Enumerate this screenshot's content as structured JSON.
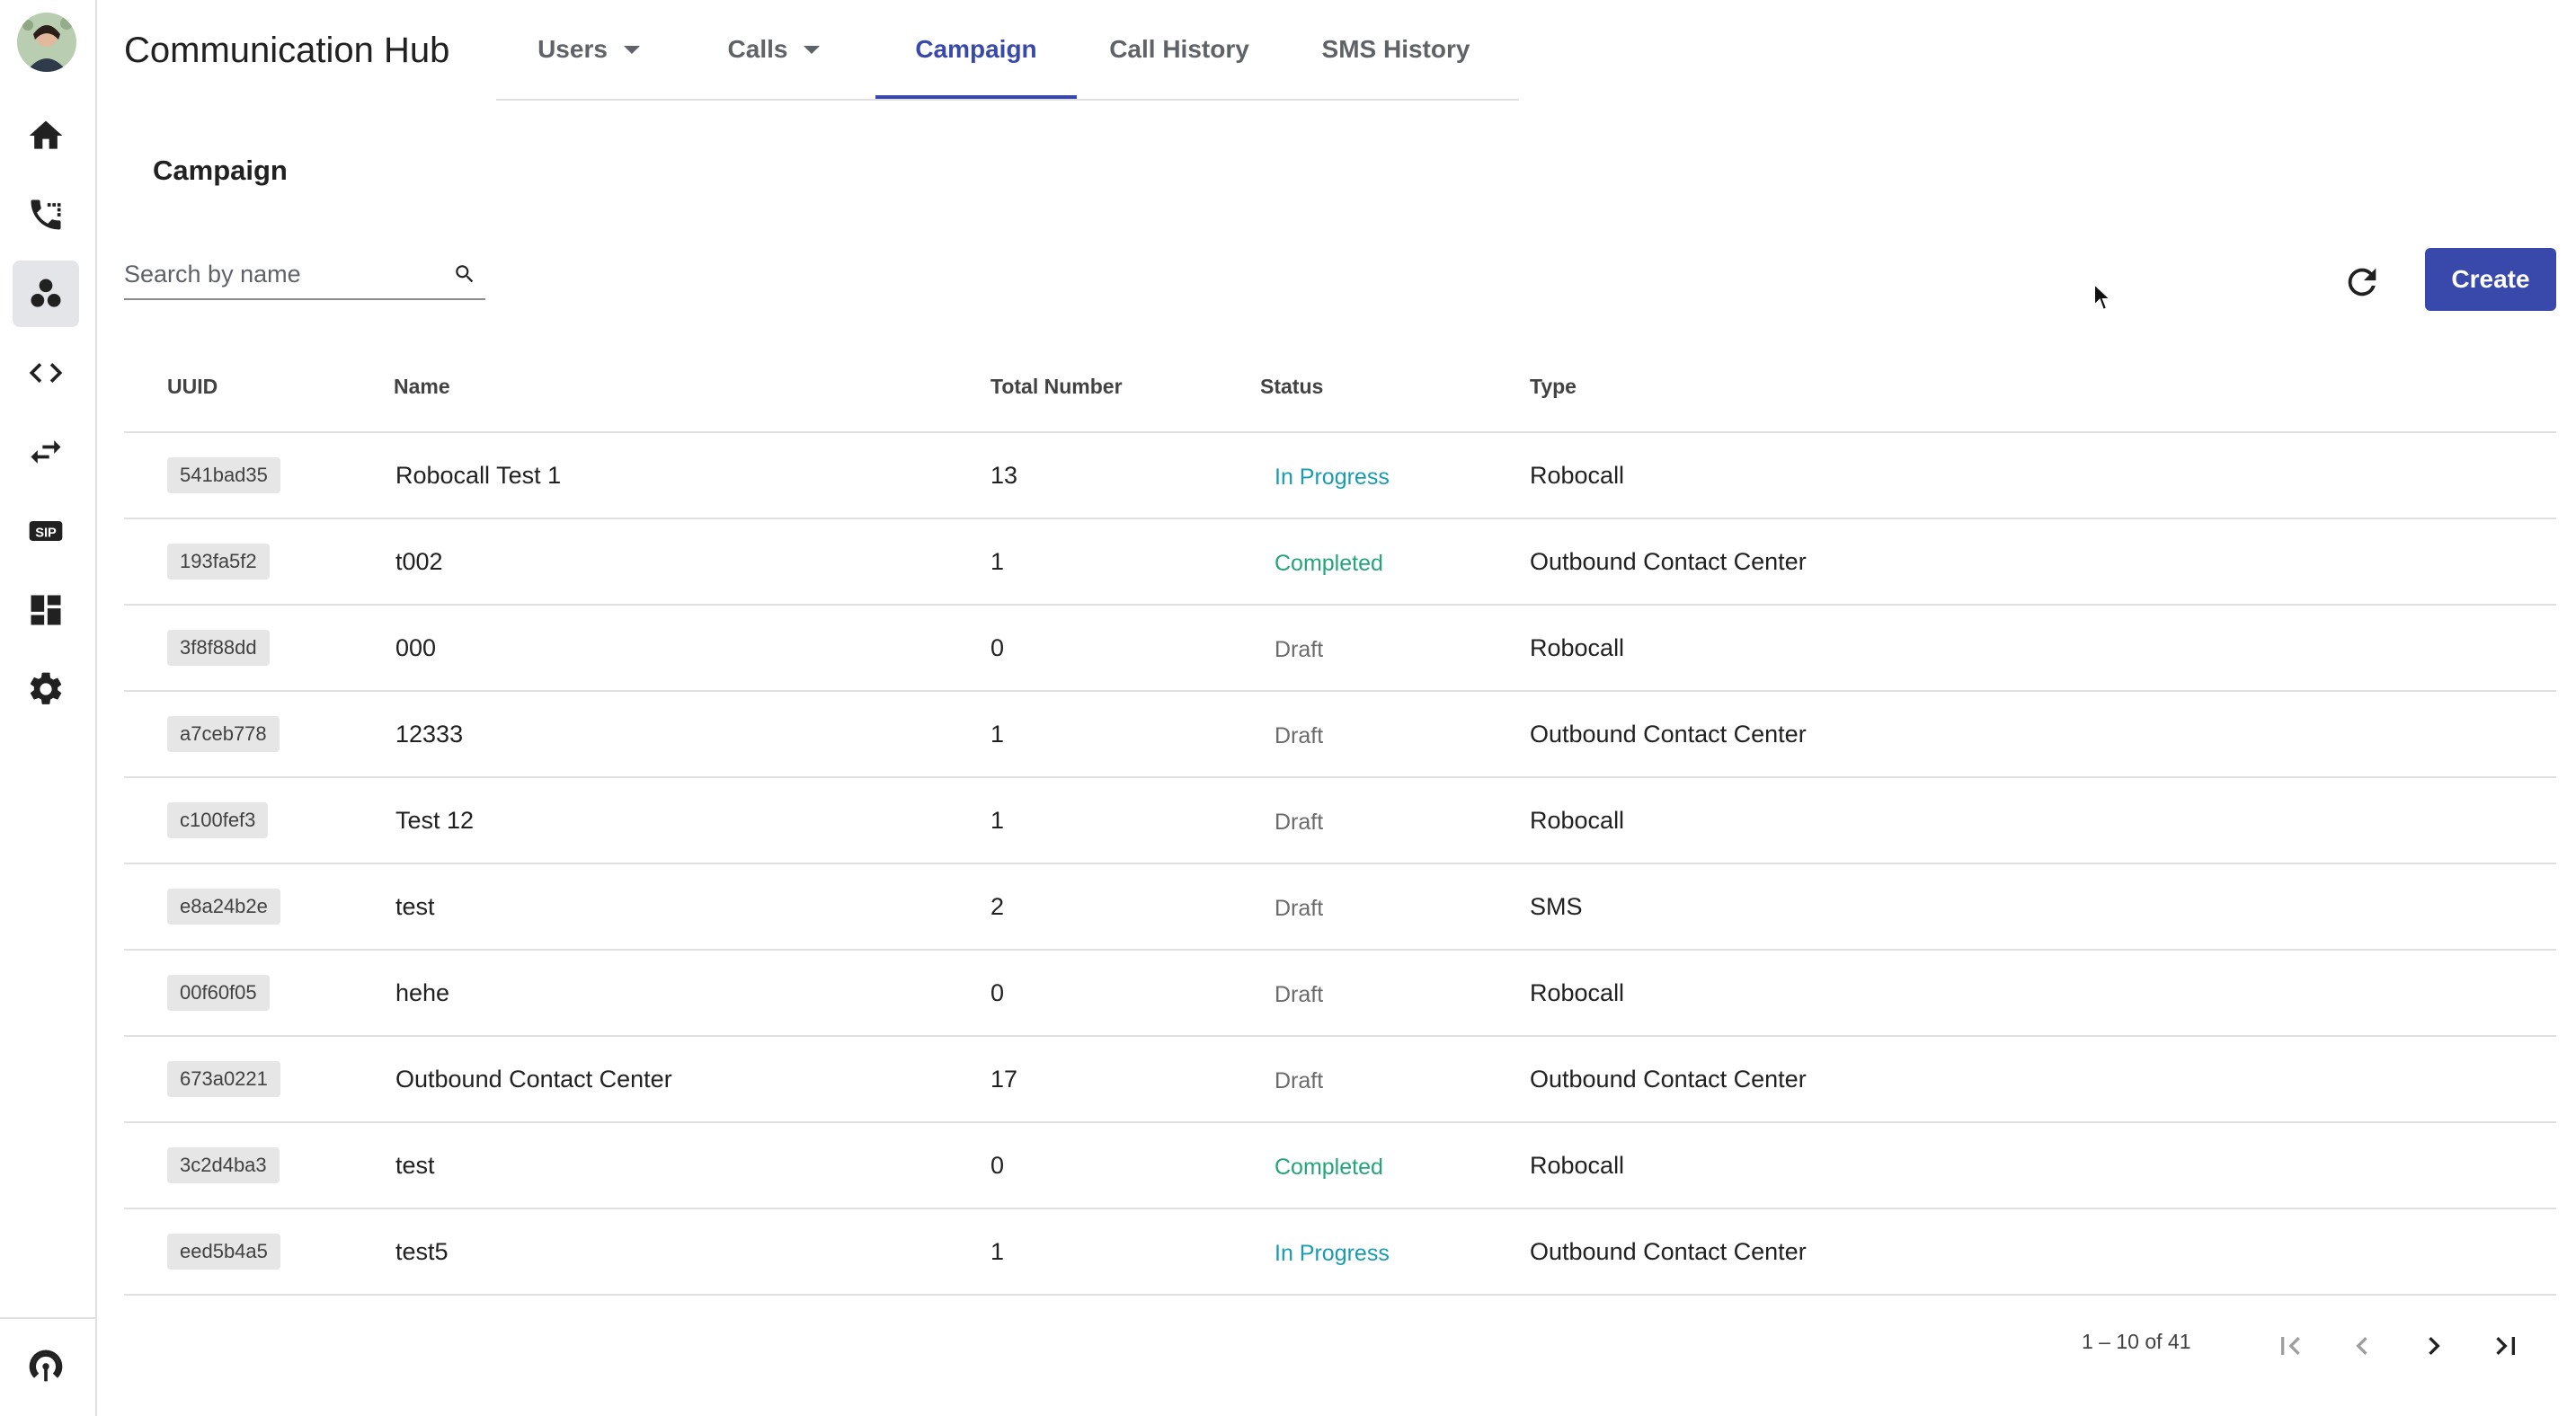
{
  "app": {
    "title": "Communication Hub"
  },
  "sidebar": {
    "items": [
      {
        "name": "home-icon",
        "active": false
      },
      {
        "name": "phone-calls-icon",
        "active": false
      },
      {
        "name": "campaign-icon",
        "active": true
      },
      {
        "name": "code-icon",
        "active": false
      },
      {
        "name": "swap-icon",
        "active": false
      },
      {
        "name": "sip-icon",
        "active": false
      },
      {
        "name": "dashboard-icon",
        "active": false
      },
      {
        "name": "settings-icon",
        "active": false
      }
    ],
    "bottom_icon": "podcast-broadcast-icon",
    "sip_text": "SIP"
  },
  "tabs": [
    {
      "label": "Users",
      "dropdown": true
    },
    {
      "label": "Calls",
      "dropdown": true
    },
    {
      "label": "Campaign",
      "active": true
    },
    {
      "label": "Call History"
    },
    {
      "label": "SMS History"
    }
  ],
  "page": {
    "title": "Campaign"
  },
  "search": {
    "placeholder": "Search by name",
    "value": ""
  },
  "toolbar": {
    "create_label": "Create",
    "refresh_icon": "refresh-icon"
  },
  "table": {
    "columns": [
      "UUID",
      "Name",
      "Total Number",
      "Status",
      "Type"
    ],
    "rows": [
      {
        "uuid": "541bad35",
        "name": "Robocall Test 1",
        "total": "13",
        "status": "In Progress",
        "type": "Robocall"
      },
      {
        "uuid": "193fa5f2",
        "name": "t002",
        "total": "1",
        "status": "Completed",
        "type": "Outbound Contact Center"
      },
      {
        "uuid": "3f8f88dd",
        "name": "000",
        "total": "0",
        "status": "Draft",
        "type": "Robocall"
      },
      {
        "uuid": "a7ceb778",
        "name": "12333",
        "total": "1",
        "status": "Draft",
        "type": "Outbound Contact Center"
      },
      {
        "uuid": "c100fef3",
        "name": "Test 12",
        "total": "1",
        "status": "Draft",
        "type": "Robocall"
      },
      {
        "uuid": "e8a24b2e",
        "name": "test",
        "total": "2",
        "status": "Draft",
        "type": "SMS"
      },
      {
        "uuid": "00f60f05",
        "name": "hehe",
        "total": "0",
        "status": "Draft",
        "type": "Robocall"
      },
      {
        "uuid": "673a0221",
        "name": "Outbound Contact Center",
        "total": "17",
        "status": "Draft",
        "type": "Outbound Contact Center"
      },
      {
        "uuid": "3c2d4ba3",
        "name": "test",
        "total": "0",
        "status": "Completed",
        "type": "Robocall"
      },
      {
        "uuid": "eed5b4a5",
        "name": "test5",
        "total": "1",
        "status": "In Progress",
        "type": "Outbound Contact Center"
      }
    ]
  },
  "pagination": {
    "range": "1 – 10 of 41"
  },
  "colors": {
    "accent": "#3949ab",
    "in_progress": "#1a9bb0",
    "completed": "#23a47a",
    "draft": "#6b6b6b"
  }
}
